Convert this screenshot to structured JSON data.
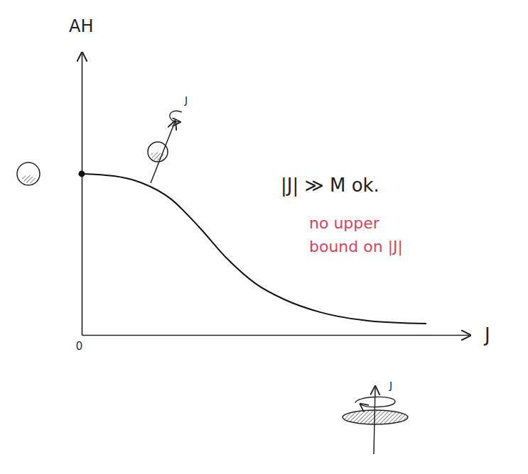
{
  "chart_data": {
    "type": "line",
    "x_label": "J",
    "y_label": "AH",
    "x": [
      0,
      0.83,
      1.56,
      2.29,
      3.03,
      3.76,
      4.5,
      5.23,
      6.15,
      7.43,
      8.9
    ],
    "values": [
      5.72,
      5.64,
      5.39,
      4.84,
      3.83,
      2.7,
      1.81,
      1.26,
      0.81,
      0.5,
      0.4
    ],
    "color": "#111111",
    "marker": "first",
    "xlim": [
      0,
      10
    ],
    "ylim": [
      0,
      10
    ],
    "xticks": [
      0
    ],
    "yticks": [],
    "tick_labels": "x",
    "annotations": [
      {
        "text": "|J| ≫ M ok.",
        "color": "#222222"
      },
      {
        "text": "no upper bound on |J|",
        "color": "#e0405a"
      },
      {
        "text": "J",
        "color": "#222222"
      },
      {
        "text": "J",
        "color": "#222222"
      }
    ]
  }
}
